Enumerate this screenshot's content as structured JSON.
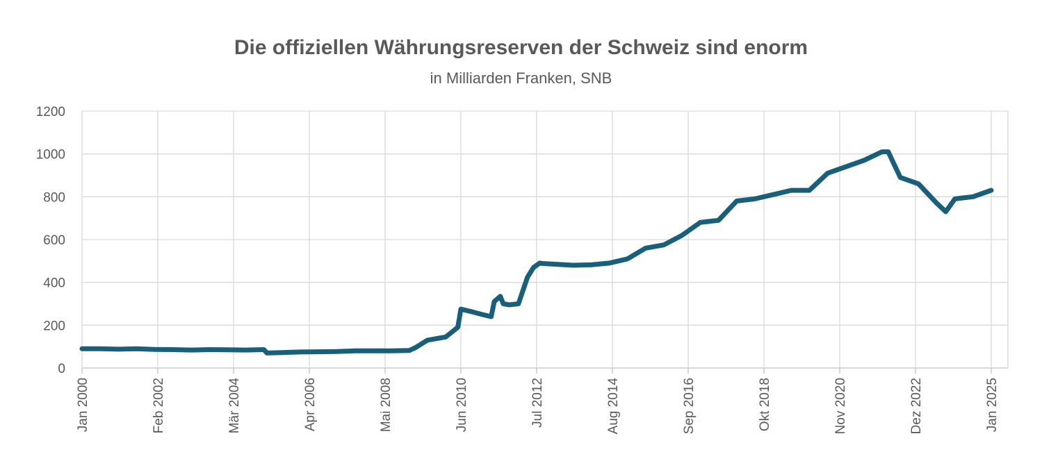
{
  "chart_data": {
    "type": "line",
    "title": "Die offiziellen Währungsreserven der Schweiz sind enorm",
    "subtitle": "in Milliarden Franken, SNB",
    "xlabel": "",
    "ylabel": "",
    "ylim": [
      0,
      1200
    ],
    "yticks": [
      0,
      200,
      400,
      600,
      800,
      1000,
      1200
    ],
    "xlim": [
      "2000-01",
      "2025-01"
    ],
    "xticks": [
      "Jan 2000",
      "Feb 2002",
      "Mär 2004",
      "Apr 2006",
      "Mai 2008",
      "Jun 2010",
      "Jul 2012",
      "Aug 2014",
      "Sep 2016",
      "Okt 2018",
      "Nov 2020",
      "Dez 2022",
      "Jan 2025"
    ],
    "grid": true,
    "legend": "none",
    "colors": {
      "line": "#1a5f7a",
      "grid": "#d9d9d9",
      "text": "#595959"
    },
    "series": [
      {
        "name": "",
        "x": [
          "2000-01",
          "2000-07",
          "2001-01",
          "2001-07",
          "2002-01",
          "2002-07",
          "2003-01",
          "2003-07",
          "2004-01",
          "2004-07",
          "2005-01",
          "2005-02",
          "2005-07",
          "2006-01",
          "2006-07",
          "2007-01",
          "2007-07",
          "2008-01",
          "2008-07",
          "2009-01",
          "2009-03",
          "2009-07",
          "2010-01",
          "2010-05",
          "2010-06",
          "2010-09",
          "2011-01",
          "2011-04",
          "2011-05",
          "2011-07",
          "2011-08",
          "2011-10",
          "2012-01",
          "2012-04",
          "2012-06",
          "2012-08",
          "2012-09",
          "2013-01",
          "2013-07",
          "2014-01",
          "2014-07",
          "2015-01",
          "2015-07",
          "2016-01",
          "2016-07",
          "2017-01",
          "2017-07",
          "2018-01",
          "2018-07",
          "2019-01",
          "2019-07",
          "2020-01",
          "2020-07",
          "2021-01",
          "2021-07",
          "2022-01",
          "2022-03",
          "2022-07",
          "2023-01",
          "2023-07",
          "2023-10",
          "2024-01",
          "2024-07",
          "2025-01"
        ],
        "values": [
          90,
          90,
          88,
          90,
          87,
          86,
          84,
          86,
          85,
          84,
          86,
          70,
          72,
          75,
          76,
          77,
          80,
          80,
          80,
          82,
          95,
          130,
          145,
          190,
          275,
          265,
          250,
          240,
          310,
          335,
          300,
          295,
          300,
          425,
          470,
          490,
          488,
          485,
          480,
          482,
          490,
          510,
          560,
          575,
          620,
          680,
          690,
          780,
          790,
          810,
          830,
          830,
          910,
          940,
          970,
          1010,
          1010,
          890,
          860,
          770,
          730,
          790,
          800,
          830
        ]
      }
    ]
  }
}
